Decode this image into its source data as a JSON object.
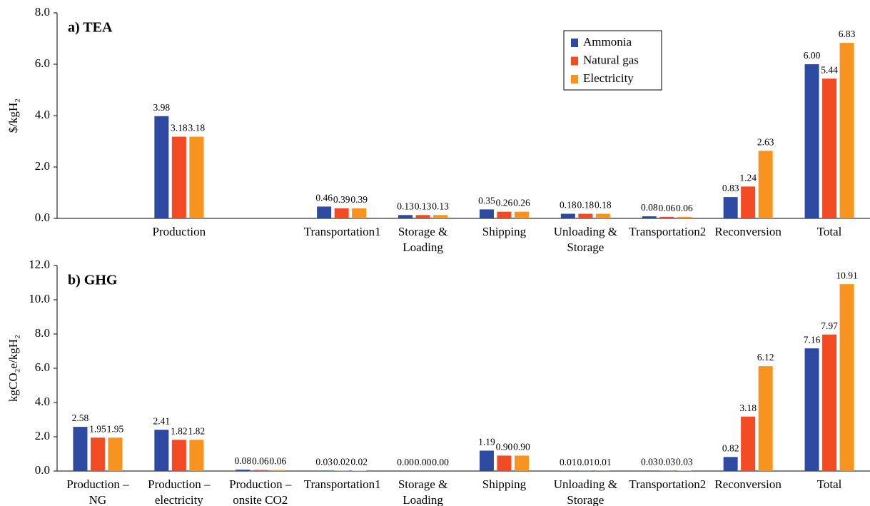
{
  "chart_data": [
    {
      "type": "bar",
      "title": "a) TEA",
      "ylabel": "$/kgH₂",
      "categories": [
        null,
        "Production",
        null,
        "Transportation1",
        "Storage & Loading",
        "Shipping",
        "Unloading & Storage",
        "Transportation2",
        "Reconversion",
        "Total"
      ],
      "series": [
        {
          "name": "Ammonia",
          "color": "#2e4aa0",
          "values": [
            null,
            3.98,
            null,
            0.46,
            0.13,
            0.35,
            0.18,
            0.08,
            0.83,
            6.0
          ],
          "value_labels": [
            null,
            "3.98",
            null,
            "0.46",
            "0.13",
            "0.35",
            "0.18",
            "0.08",
            "0.83",
            "6.00"
          ]
        },
        {
          "name": "Natural gas",
          "color": "#f24a23",
          "values": [
            null,
            3.18,
            null,
            0.39,
            0.13,
            0.26,
            0.18,
            0.06,
            1.24,
            5.44
          ],
          "value_labels": [
            null,
            "3.18",
            null,
            "0.39",
            "0.13",
            "0.26",
            "0.18",
            "0.06",
            "1.24",
            "5.44"
          ]
        },
        {
          "name": "Electricity",
          "color": "#f7931e",
          "values": [
            null,
            3.18,
            null,
            0.39,
            0.13,
            0.26,
            0.18,
            0.06,
            2.63,
            6.83
          ],
          "value_labels": [
            null,
            "3.18",
            null,
            "0.39",
            "0.13",
            "0.26",
            "0.18",
            "0.06",
            "2.63",
            "6.83"
          ]
        }
      ],
      "ylim": [
        0,
        8
      ],
      "yticks": [
        {
          "value": 0,
          "label": "0.0"
        },
        {
          "value": 2,
          "label": "2.0"
        },
        {
          "value": 4,
          "label": "4.0"
        },
        {
          "value": 6,
          "label": "6.0"
        },
        {
          "value": 8,
          "label": "8.0"
        }
      ],
      "legend": "upper right",
      "grid": false
    },
    {
      "type": "bar",
      "title": "b) GHG",
      "ylabel": "kgCO₂e/kgH₂",
      "categories": [
        "Production – NG",
        "Production – electricity",
        "Production – onsite CO2",
        "Transportation1",
        "Storage & Loading",
        "Shipping",
        "Unloading & Storage",
        "Transportation2",
        "Reconversion",
        "Total"
      ],
      "series": [
        {
          "color": "#2e4aa0",
          "values": [
            2.58,
            2.41,
            0.08,
            0.03,
            0.0,
            1.19,
            0.01,
            0.03,
            0.82,
            7.16
          ],
          "value_labels": [
            "2.58",
            "2.41",
            "0.08",
            "0.03",
            "0.00",
            "1.19",
            "0.01",
            "0.03",
            "0.82",
            "7.16"
          ]
        },
        {
          "color": "#f24a23",
          "values": [
            1.95,
            1.82,
            0.06,
            0.02,
            0.0,
            0.9,
            0.01,
            0.03,
            3.18,
            7.97
          ],
          "value_labels": [
            "1.95",
            "1.82",
            "0.06",
            "0.02",
            "0.00",
            "0.90",
            "0.01",
            "0.03",
            "3.18",
            "7.97"
          ]
        },
        {
          "color": "#f7931e",
          "values": [
            1.95,
            1.82,
            0.06,
            0.02,
            0.0,
            0.9,
            0.01,
            0.03,
            6.12,
            10.91
          ],
          "value_labels": [
            "1.95",
            "1.82",
            "0.06",
            "0.02",
            "0.00",
            "0.90",
            "0.01",
            "0.03",
            "6.12",
            "10.91"
          ]
        }
      ],
      "ylim": [
        0,
        12
      ],
      "yticks": [
        {
          "value": 0,
          "label": "0.0"
        },
        {
          "value": 2,
          "label": "2.0"
        },
        {
          "value": 4,
          "label": "4.0"
        },
        {
          "value": 6,
          "label": "6.0"
        },
        {
          "value": 8,
          "label": "8.0"
        },
        {
          "value": 10,
          "label": "10.0"
        },
        {
          "value": 12,
          "label": "12.0"
        }
      ],
      "grid": false
    }
  ]
}
